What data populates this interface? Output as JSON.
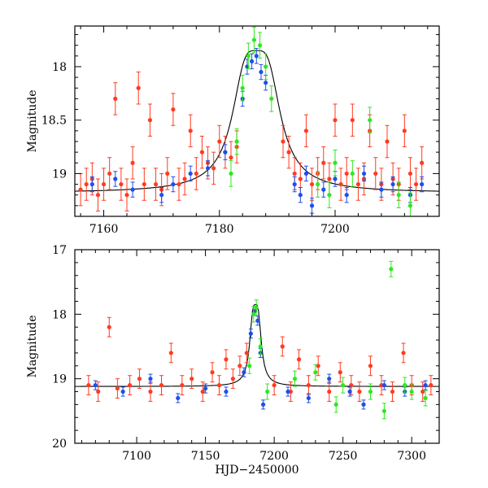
{
  "chart_data": [
    {
      "type": "scatter",
      "panel": "top",
      "title": "",
      "xlabel": "",
      "ylabel": "Magnitude",
      "xlim": [
        7155,
        7218
      ],
      "ylim": [
        19.4,
        17.62
      ],
      "y_inverted": true,
      "x_ticks": [
        7160,
        7180,
        7200
      ],
      "y_ticks": [
        18,
        18.5,
        19
      ],
      "y_tick_labels": [
        "18",
        "18.5",
        "19"
      ],
      "series": [
        {
          "name": "red",
          "color": "#ff3b21",
          "err": 0.15,
          "x": [
            7156,
            7157,
            7158,
            7159,
            7160,
            7161,
            7162,
            7163,
            7164,
            7165,
            7166,
            7167,
            7168,
            7169,
            7170,
            7171,
            7172,
            7173,
            7174,
            7175,
            7176,
            7177,
            7178,
            7179,
            7180,
            7181,
            7182,
            7183,
            7191,
            7192,
            7193,
            7194,
            7195,
            7196,
            7197,
            7198,
            7199,
            7200,
            7201,
            7202,
            7203,
            7204,
            7205,
            7206,
            7207,
            7208,
            7209,
            7210,
            7211,
            7212,
            7213,
            7214,
            7215
          ],
          "y": [
            19.15,
            19.1,
            19.05,
            19.2,
            19.1,
            19.0,
            18.3,
            19.1,
            19.2,
            18.9,
            18.2,
            19.1,
            18.5,
            19.1,
            19.15,
            19.0,
            18.4,
            19.1,
            19.05,
            18.6,
            19.0,
            18.8,
            18.9,
            18.95,
            18.7,
            18.8,
            18.85,
            18.75,
            18.7,
            18.8,
            19.0,
            19.05,
            18.6,
            19.1,
            19.0,
            18.9,
            19.05,
            18.5,
            19.1,
            19.0,
            18.5,
            19.1,
            19.05,
            18.6,
            19.0,
            19.1,
            18.7,
            19.05,
            19.1,
            18.6,
            19.0,
            19.1,
            18.9
          ]
        },
        {
          "name": "blue",
          "color": "#1e4fe8",
          "err": 0.07,
          "x": [
            7158,
            7162,
            7165,
            7170,
            7172,
            7175,
            7178,
            7181,
            7184,
            7184.8,
            7185.6,
            7186.4,
            7187.2,
            7188,
            7193,
            7194,
            7195,
            7196,
            7198,
            7200,
            7202,
            7205,
            7208,
            7210,
            7213,
            7215
          ],
          "y": [
            19.1,
            19.05,
            19.15,
            19.2,
            19.1,
            19.0,
            18.95,
            18.8,
            18.3,
            18.0,
            17.95,
            17.9,
            18.05,
            18.15,
            19.1,
            19.2,
            19.0,
            19.3,
            19.15,
            19.05,
            19.2,
            19.0,
            19.15,
            19.1,
            19.2,
            19.1
          ]
        },
        {
          "name": "green",
          "color": "#2ee81e",
          "err": 0.12,
          "x": [
            7182,
            7183,
            7184,
            7185,
            7186,
            7187,
            7188,
            7189,
            7197,
            7199,
            7200,
            7203,
            7206,
            7211,
            7213
          ],
          "y": [
            19.0,
            18.7,
            18.2,
            17.9,
            17.75,
            17.8,
            18.0,
            18.3,
            19.1,
            19.2,
            18.9,
            19.0,
            18.5,
            19.2,
            19.3
          ]
        }
      ],
      "model_curve": {
        "baseline": 19.18,
        "peak_x": 7186.4,
        "peak_mag": 17.85,
        "width": 3.4
      }
    },
    {
      "type": "scatter",
      "panel": "bottom",
      "title": "",
      "xlabel": "HJD−2450000",
      "ylabel": "Magnitude",
      "xlim": [
        7055,
        7320
      ],
      "ylim": [
        20,
        17
      ],
      "y_inverted": true,
      "x_ticks": [
        7100,
        7150,
        7200,
        7250,
        7300
      ],
      "y_ticks": [
        17,
        18,
        19,
        20
      ],
      "y_tick_labels": [
        "17",
        "18",
        "19",
        "20"
      ],
      "series": [
        {
          "name": "red",
          "color": "#ff3b21",
          "err": 0.15,
          "x": [
            7065,
            7072,
            7080,
            7086,
            7095,
            7102,
            7110,
            7118,
            7125,
            7133,
            7140,
            7148,
            7155,
            7160,
            7165,
            7170,
            7175,
            7180,
            7200,
            7206,
            7212,
            7218,
            7225,
            7232,
            7240,
            7248,
            7256,
            7262,
            7270,
            7278,
            7286,
            7294,
            7300,
            7308,
            7314
          ],
          "y": [
            19.1,
            19.2,
            18.2,
            19.15,
            19.1,
            19.0,
            19.2,
            19.1,
            18.6,
            19.1,
            19.0,
            19.2,
            18.9,
            19.1,
            18.7,
            19.0,
            18.8,
            18.6,
            19.1,
            18.5,
            19.2,
            18.7,
            19.1,
            18.8,
            19.2,
            18.9,
            19.1,
            19.2,
            18.8,
            19.1,
            19.2,
            18.6,
            19.1,
            19.2,
            19.1
          ]
        },
        {
          "name": "blue",
          "color": "#1e4fe8",
          "err": 0.07,
          "x": [
            7070,
            7090,
            7110,
            7130,
            7150,
            7165,
            7178,
            7183,
            7186,
            7188,
            7190,
            7192,
            7210,
            7225,
            7240,
            7255,
            7265,
            7280,
            7295,
            7310
          ],
          "y": [
            19.1,
            19.2,
            19.0,
            19.3,
            19.15,
            19.2,
            18.9,
            18.3,
            17.95,
            18.1,
            18.6,
            19.4,
            19.2,
            19.3,
            19.0,
            19.2,
            19.4,
            19.1,
            19.2,
            19.1
          ]
        },
        {
          "name": "green",
          "color": "#2ee81e",
          "err": 0.12,
          "x": [
            7182,
            7185,
            7187,
            7190,
            7195,
            7215,
            7230,
            7245,
            7250,
            7270,
            7280,
            7285,
            7295,
            7300,
            7310
          ],
          "y": [
            18.8,
            18.0,
            17.9,
            18.5,
            19.2,
            19.0,
            18.9,
            19.4,
            19.1,
            19.2,
            19.5,
            17.3,
            19.1,
            19.2,
            19.3
          ]
        }
      ],
      "model_curve": {
        "baseline": 19.12,
        "peak_x": 7186.4,
        "peak_mag": 17.85,
        "width": 3.4
      }
    }
  ]
}
